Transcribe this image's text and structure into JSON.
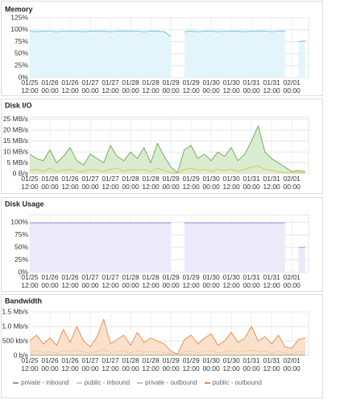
{
  "chart_data": [
    {
      "type": "area",
      "title": "Memory",
      "x": [
        "01/25 12:00",
        "01/25 16:00",
        "01/25 20:00",
        "01/26 00:00",
        "01/26 04:00",
        "01/26 08:00",
        "01/26 12:00",
        "01/26 16:00",
        "01/26 20:00",
        "01/27 00:00",
        "01/27 04:00",
        "01/27 08:00",
        "01/27 12:00",
        "01/27 16:00",
        "01/27 20:00",
        "01/28 00:00",
        "01/28 04:00",
        "01/28 08:00",
        "01/28 12:00",
        "01/28 16:00",
        "01/28 20:00",
        "01/29 00:00",
        "01/29 04:00",
        "01/29 08:00",
        "01/29 12:00",
        "01/29 16:00",
        "01/29 20:00",
        "01/30 00:00",
        "01/30 04:00",
        "01/30 08:00",
        "01/30 12:00",
        "01/30 16:00",
        "01/30 20:00",
        "01/31 00:00",
        "01/31 04:00",
        "01/31 08:00",
        "01/31 12:00",
        "01/31 16:00",
        "01/31 20:00",
        "02/01 00:00",
        "02/01 04:00",
        "02/01 08:00"
      ],
      "xlim": [
        "01/25 12:00",
        "02/01 10:00"
      ],
      "xticks": [
        "01/25 12:00",
        "01/26 00:00",
        "01/26 12:00",
        "01/27 00:00",
        "01/27 12:00",
        "01/28 00:00",
        "01/28 12:00",
        "01/29 00:00",
        "01/29 12:00",
        "01/30 00:00",
        "01/30 12:00",
        "01/31 00:00",
        "01/31 12:00",
        "02/01 00:00"
      ],
      "ylim": [
        0,
        125
      ],
      "yticks": [
        {
          "value": 0,
          "label": "0%"
        },
        {
          "value": 25,
          "label": "25%"
        },
        {
          "value": 50,
          "label": "50%"
        },
        {
          "value": 75,
          "label": "75%"
        },
        {
          "value": 100,
          "label": "100%"
        },
        {
          "value": 125,
          "label": "125%"
        }
      ],
      "grid": true,
      "series": [
        {
          "color": "#5bbfe0",
          "fill": "#e3f5fb",
          "values": [
            97,
            96,
            97,
            97,
            96,
            97,
            97,
            97,
            96,
            97,
            97,
            97,
            96,
            97,
            97,
            97,
            97,
            96,
            97,
            97,
            96,
            86,
            null,
            96,
            97,
            96,
            97,
            97,
            96,
            97,
            97,
            97,
            96,
            97,
            97,
            97,
            96,
            97,
            97,
            null,
            75,
            77
          ]
        }
      ]
    },
    {
      "type": "area",
      "title": "Disk I/O",
      "x": [
        "01/25 12:00",
        "01/25 16:00",
        "01/25 20:00",
        "01/26 00:00",
        "01/26 04:00",
        "01/26 08:00",
        "01/26 12:00",
        "01/26 16:00",
        "01/26 20:00",
        "01/27 00:00",
        "01/27 04:00",
        "01/27 08:00",
        "01/27 12:00",
        "01/27 16:00",
        "01/27 20:00",
        "01/28 00:00",
        "01/28 04:00",
        "01/28 08:00",
        "01/28 12:00",
        "01/28 16:00",
        "01/28 20:00",
        "01/29 00:00",
        "01/29 04:00",
        "01/29 08:00",
        "01/29 12:00",
        "01/29 16:00",
        "01/29 20:00",
        "01/30 00:00",
        "01/30 04:00",
        "01/30 08:00",
        "01/30 12:00",
        "01/30 16:00",
        "01/30 20:00",
        "01/31 00:00",
        "01/31 04:00",
        "01/31 08:00",
        "01/31 12:00",
        "01/31 16:00",
        "01/31 20:00",
        "02/01 00:00",
        "02/01 04:00",
        "02/01 08:00"
      ],
      "xlim": [
        "01/25 12:00",
        "02/01 10:00"
      ],
      "xticks": [
        "01/25 12:00",
        "01/26 00:00",
        "01/26 12:00",
        "01/27 00:00",
        "01/27 12:00",
        "01/28 00:00",
        "01/28 12:00",
        "01/29 00:00",
        "01/29 12:00",
        "01/30 00:00",
        "01/30 12:00",
        "01/31 00:00",
        "01/31 12:00",
        "02/01 00:00"
      ],
      "ylim": [
        0,
        26
      ],
      "yticks": [
        {
          "value": 0,
          "label": "0 B/s"
        },
        {
          "value": 5,
          "label": "5 MB/s"
        },
        {
          "value": 10,
          "label": "10 MB/s"
        },
        {
          "value": 15,
          "label": "15 MB/s"
        },
        {
          "value": 20,
          "label": "20 MB/s"
        },
        {
          "value": 25,
          "label": "25 MB/s"
        }
      ],
      "grid": true,
      "series": [
        {
          "color": "#6aa84f",
          "fill": "#d9ecd0",
          "values": [
            9,
            7,
            6,
            11,
            5,
            8,
            12,
            6,
            4,
            9,
            7,
            5,
            13,
            8,
            6,
            10,
            7,
            12,
            5,
            14,
            8,
            3,
            0.5,
            11,
            13,
            7,
            9,
            6,
            10,
            8,
            12,
            6,
            9,
            15,
            22,
            10,
            7,
            5,
            3,
            1,
            1.5,
            1
          ]
        },
        {
          "color": "#e6c14b",
          "values": [
            1.5,
            2,
            1,
            2.5,
            1,
            1.5,
            2,
            1,
            1,
            2,
            1.5,
            1,
            2,
            2.5,
            1,
            2,
            1.5,
            2,
            1,
            2.5,
            1.5,
            0.5,
            0.2,
            2,
            2.5,
            1.5,
            2,
            1,
            2,
            1.5,
            2,
            1,
            2,
            3,
            3.5,
            2,
            1.5,
            1,
            0.5,
            0.5,
            0.5,
            0.5
          ]
        }
      ]
    },
    {
      "type": "area",
      "title": "Disk Usage",
      "x": [
        "01/25 12:00",
        "01/25 16:00",
        "01/25 20:00",
        "01/26 00:00",
        "01/26 04:00",
        "01/26 08:00",
        "01/26 12:00",
        "01/26 16:00",
        "01/26 20:00",
        "01/27 00:00",
        "01/27 04:00",
        "01/27 08:00",
        "01/27 12:00",
        "01/27 16:00",
        "01/27 20:00",
        "01/28 00:00",
        "01/28 04:00",
        "01/28 08:00",
        "01/28 12:00",
        "01/28 16:00",
        "01/28 20:00",
        "01/29 00:00",
        "01/29 04:00",
        "01/29 08:00",
        "01/29 12:00",
        "01/29 16:00",
        "01/29 20:00",
        "01/30 00:00",
        "01/30 04:00",
        "01/30 08:00",
        "01/30 12:00",
        "01/30 16:00",
        "01/30 20:00",
        "01/31 00:00",
        "01/31 04:00",
        "01/31 08:00",
        "01/31 12:00",
        "01/31 16:00",
        "01/31 20:00",
        "02/01 00:00",
        "02/01 04:00",
        "02/01 08:00"
      ],
      "xlim": [
        "01/25 12:00",
        "02/01 10:00"
      ],
      "xticks": [
        "01/25 12:00",
        "01/26 00:00",
        "01/26 12:00",
        "01/27 00:00",
        "01/27 12:00",
        "01/28 00:00",
        "01/28 12:00",
        "01/29 00:00",
        "01/29 12:00",
        "01/30 00:00",
        "01/30 12:00",
        "01/31 00:00",
        "01/31 12:00",
        "02/01 00:00"
      ],
      "ylim": [
        0,
        115
      ],
      "yticks": [
        {
          "value": 0,
          "label": "0%"
        },
        {
          "value": 25,
          "label": "25%"
        },
        {
          "value": 50,
          "label": "50%"
        },
        {
          "value": 75,
          "label": "75%"
        },
        {
          "value": 100,
          "label": "100%"
        }
      ],
      "grid": true,
      "series": [
        {
          "color": "#9a90d8",
          "fill": "#eceafa",
          "values": [
            99,
            99,
            99,
            99,
            99,
            99,
            99,
            99,
            99,
            99,
            99,
            99,
            99,
            99,
            99,
            99,
            99,
            99,
            99,
            99,
            99,
            99,
            null,
            99,
            99,
            99,
            99,
            99,
            99,
            99,
            99,
            99,
            99,
            99,
            99,
            99,
            99,
            99,
            99,
            null,
            50,
            50
          ]
        }
      ]
    },
    {
      "type": "area",
      "title": "Bandwidth",
      "x": [
        "01/25 12:00",
        "01/25 16:00",
        "01/25 20:00",
        "01/26 00:00",
        "01/26 04:00",
        "01/26 08:00",
        "01/26 12:00",
        "01/26 16:00",
        "01/26 20:00",
        "01/27 00:00",
        "01/27 04:00",
        "01/27 08:00",
        "01/27 12:00",
        "01/27 16:00",
        "01/27 20:00",
        "01/28 00:00",
        "01/28 04:00",
        "01/28 08:00",
        "01/28 12:00",
        "01/28 16:00",
        "01/28 20:00",
        "01/29 00:00",
        "01/29 04:00",
        "01/29 08:00",
        "01/29 12:00",
        "01/29 16:00",
        "01/29 20:00",
        "01/30 00:00",
        "01/30 04:00",
        "01/30 08:00",
        "01/30 12:00",
        "01/30 16:00",
        "01/30 20:00",
        "01/31 00:00",
        "01/31 04:00",
        "01/31 08:00",
        "01/31 12:00",
        "01/31 16:00",
        "01/31 20:00",
        "02/01 00:00",
        "02/01 04:00",
        "02/01 08:00"
      ],
      "xlim": [
        "01/25 12:00",
        "02/01 10:00"
      ],
      "xticks": [
        "01/25 12:00",
        "01/26 00:00",
        "01/26 12:00",
        "01/27 00:00",
        "01/27 12:00",
        "01/28 00:00",
        "01/28 12:00",
        "01/29 00:00",
        "01/29 12:00",
        "01/30 00:00",
        "01/30 12:00",
        "01/31 00:00",
        "01/31 12:00",
        "02/01 00:00"
      ],
      "ylim": [
        0,
        1500
      ],
      "yticks": [
        {
          "value": 0,
          "label": "0 b/s"
        },
        {
          "value": 500,
          "label": "500 kb/s"
        },
        {
          "value": 1000,
          "label": "1.0 Mb/s"
        },
        {
          "value": 1500,
          "label": "1.5 Mb/s"
        }
      ],
      "grid": true,
      "legend": "bottom",
      "series": [
        {
          "name": "private - inbound",
          "color": "#9a9a9a",
          "values": [
            20,
            20,
            20,
            20,
            20,
            20,
            20,
            20,
            20,
            20,
            20,
            20,
            20,
            20,
            20,
            20,
            20,
            20,
            20,
            20,
            20,
            20,
            20,
            20,
            20,
            20,
            20,
            20,
            20,
            20,
            20,
            20,
            20,
            20,
            20,
            20,
            20,
            20,
            20,
            20,
            20,
            20
          ]
        },
        {
          "name": "public - inbound",
          "color": "#f0c59c",
          "fill": "#fbeadb",
          "values": [
            120,
            150,
            100,
            130,
            90,
            160,
            110,
            180,
            120,
            90,
            140,
            200,
            100,
            130,
            150,
            90,
            160,
            110,
            140,
            120,
            100,
            60,
            20,
            130,
            150,
            100,
            140,
            160,
            90,
            120,
            170,
            110,
            140,
            190,
            120,
            150,
            100,
            150,
            80,
            60,
            120,
            130
          ]
        },
        {
          "name": "private - outbound",
          "color": "#b6c89e",
          "values": [
            10,
            10,
            10,
            10,
            10,
            10,
            10,
            10,
            10,
            10,
            10,
            10,
            10,
            10,
            10,
            10,
            10,
            10,
            10,
            10,
            10,
            10,
            10,
            10,
            10,
            10,
            10,
            10,
            10,
            10,
            10,
            10,
            10,
            10,
            10,
            10,
            10,
            10,
            10,
            10,
            10,
            10
          ]
        },
        {
          "name": "public - outbound",
          "color": "#e8894a",
          "fill": "#fbe1cc",
          "values": [
            500,
            700,
            400,
            600,
            350,
            900,
            450,
            1000,
            500,
            300,
            650,
            1250,
            400,
            550,
            700,
            350,
            800,
            450,
            600,
            500,
            400,
            150,
            50,
            550,
            700,
            400,
            600,
            750,
            350,
            500,
            800,
            450,
            600,
            1000,
            500,
            650,
            400,
            700,
            300,
            250,
            550,
            600
          ]
        }
      ]
    }
  ]
}
